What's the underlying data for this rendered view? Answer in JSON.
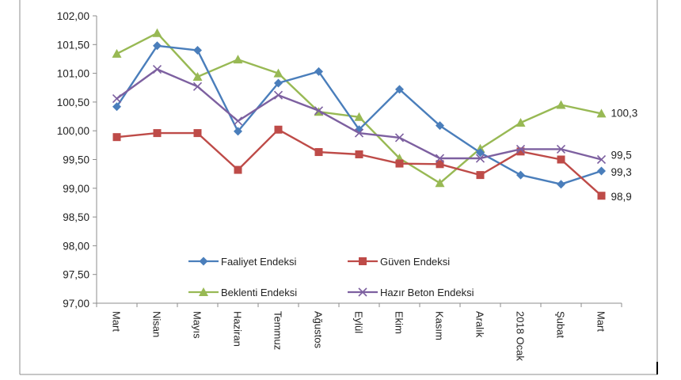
{
  "chart_data": {
    "type": "line",
    "title": "",
    "xlabel": "",
    "ylabel": "",
    "categories": [
      "Mart",
      "Nisan",
      "Mayıs",
      "Haziran",
      "Temmuz",
      "Ağustos",
      "Eylül",
      "Ekim",
      "Kasım",
      "Aralık",
      "2018 Ocak",
      "Şubat",
      "Mart"
    ],
    "ylim": [
      97.0,
      102.0
    ],
    "yticks": [
      "97,00",
      "97,50",
      "98,00",
      "98,50",
      "99,00",
      "99,50",
      "100,00",
      "100,50",
      "101,00",
      "101,50",
      "102,00"
    ],
    "grid": false,
    "legend_position": "bottom-inside",
    "series": [
      {
        "name": "Faaliyet Endeksi",
        "color": "#4a7ebb",
        "marker": "diamond",
        "values": [
          100.42,
          101.48,
          101.4,
          99.99,
          100.83,
          101.03,
          100.02,
          100.72,
          100.09,
          99.62,
          99.23,
          99.07,
          99.3
        ],
        "end_label": "99,3"
      },
      {
        "name": "Güven Endeksi",
        "color": "#be4b48",
        "marker": "square",
        "values": [
          99.89,
          99.96,
          99.96,
          99.32,
          100.02,
          99.63,
          99.59,
          99.43,
          99.42,
          99.23,
          99.64,
          99.5,
          98.87
        ],
        "end_label": "98,9"
      },
      {
        "name": "Beklenti Endeksi",
        "color": "#98b954",
        "marker": "triangle",
        "values": [
          101.34,
          101.7,
          100.94,
          101.24,
          101.0,
          100.33,
          100.24,
          99.52,
          99.09,
          99.69,
          100.14,
          100.45,
          100.3
        ],
        "end_label": "100,3"
      },
      {
        "name": "Hazır Beton Endeksi",
        "color": "#7d60a0",
        "marker": "x",
        "values": [
          100.56,
          101.07,
          100.77,
          100.17,
          100.62,
          100.35,
          99.96,
          99.88,
          99.52,
          99.52,
          99.68,
          99.68,
          99.5
        ],
        "end_label": "99,5"
      }
    ]
  }
}
